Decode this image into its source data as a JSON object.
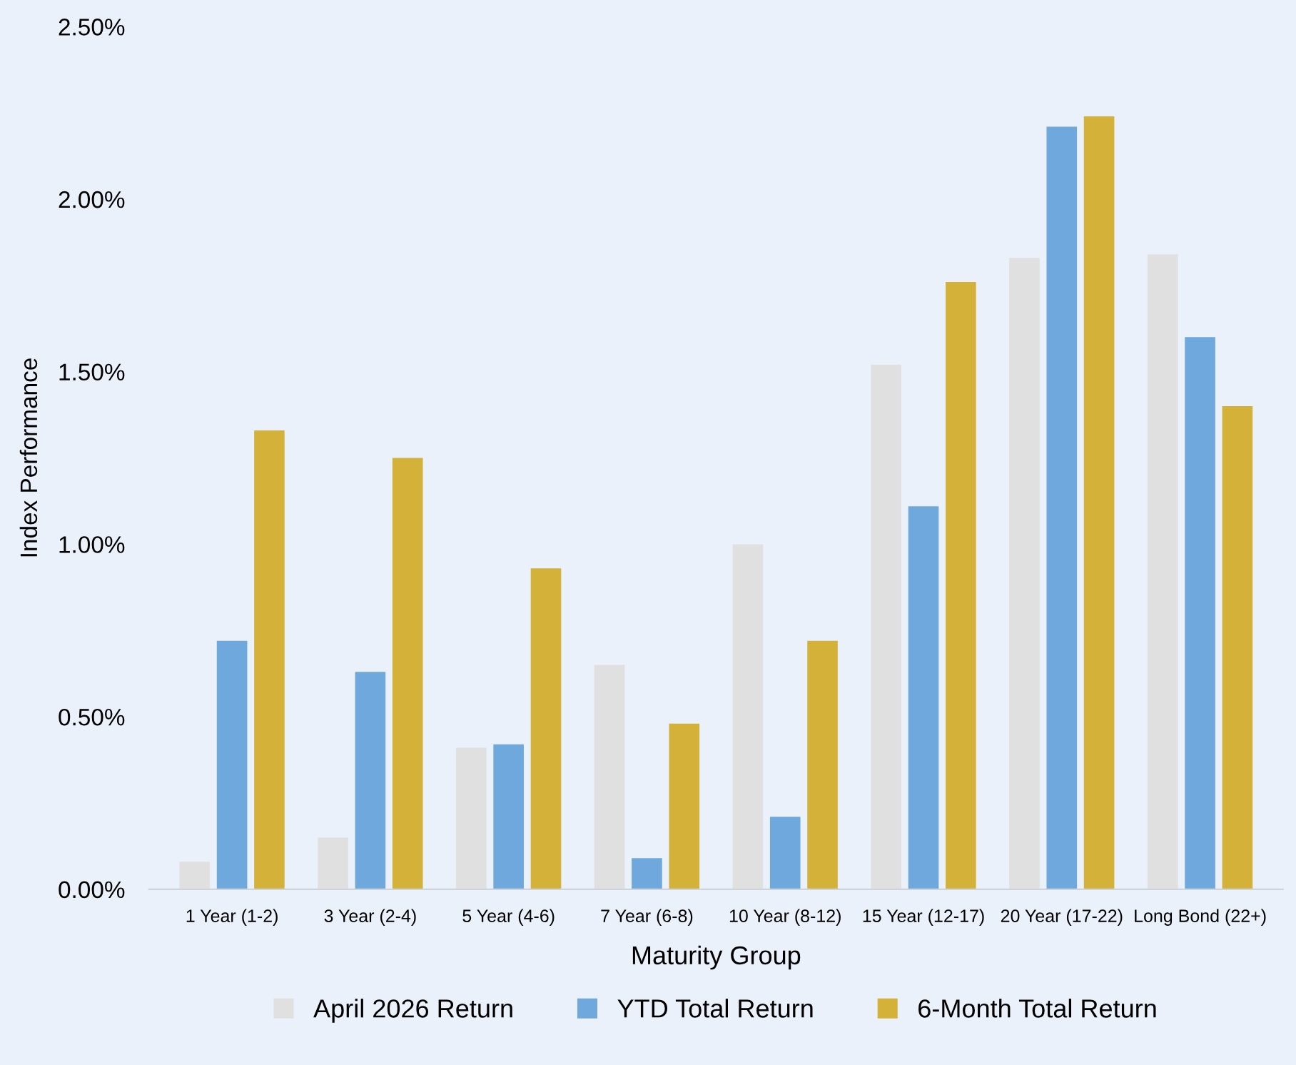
{
  "chart_data": {
    "type": "bar",
    "categories": [
      "1 Year (1-2)",
      "3 Year (2-4)",
      "5 Year (4-6)",
      "7 Year (6-8)",
      "10 Year (8-12)",
      "15 Year (12-17)",
      "20 Year (17-22)",
      "Long Bond (22+)"
    ],
    "series": [
      {
        "name": "April 2026 Return",
        "color": "#e0e0e0",
        "values": [
          0.08,
          0.15,
          0.41,
          0.65,
          1.0,
          1.52,
          1.83,
          1.84
        ]
      },
      {
        "name": "YTD Total Return",
        "color": "#6fa8dc",
        "values": [
          0.72,
          0.63,
          0.42,
          0.09,
          0.21,
          1.11,
          2.21,
          1.6
        ]
      },
      {
        "name": "6-Month Total Return",
        "color": "#d4b23a",
        "values": [
          1.33,
          1.25,
          0.93,
          0.48,
          0.72,
          1.76,
          2.24,
          1.4
        ]
      }
    ],
    "xlabel": "Maturity Group",
    "ylabel": "Index Performance",
    "ylim": [
      0,
      2.5
    ],
    "yticks": [
      {
        "value": 0,
        "label": "0.00%"
      },
      {
        "value": 0.5,
        "label": "0.50%"
      },
      {
        "value": 1.0,
        "label": "1.00%"
      },
      {
        "value": 1.5,
        "label": "1.50%"
      },
      {
        "value": 2.0,
        "label": "2.00%"
      },
      {
        "value": 2.5,
        "label": "2.50%"
      }
    ],
    "grid": false,
    "legend": "bottom"
  }
}
